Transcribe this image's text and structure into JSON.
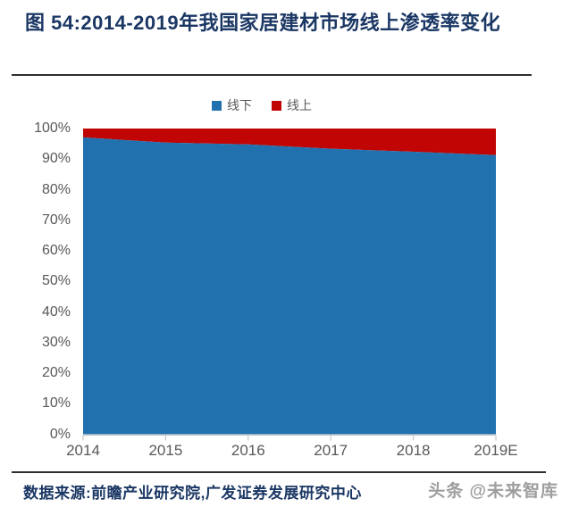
{
  "figure": {
    "title": "图 54:2014-2019年我国家居建材市场线上渗透率变化",
    "source": "数据来源:前瞻产业研究院,广发证券发展研究中心",
    "watermark": "头条 @未来智库"
  },
  "colors": {
    "offline": "#2071AE",
    "online": "#C00504",
    "title_text": "#1B3764",
    "axis_text": "#595959",
    "axis_line": "#C8C8C8"
  },
  "chart_data": {
    "type": "area",
    "stacked": true,
    "title": "2014-2019年我国家居建材市场线上渗透率变化",
    "categories": [
      "2014",
      "2015",
      "2016",
      "2017",
      "2018",
      "2019E"
    ],
    "series": [
      {
        "name": "线下",
        "color": "#2071AE",
        "values": [
          97.1,
          95.4,
          94.8,
          93.4,
          92.4,
          91.3
        ]
      },
      {
        "name": "线上",
        "color": "#C00504",
        "values": [
          2.9,
          4.6,
          5.2,
          6.6,
          7.6,
          8.7
        ]
      }
    ],
    "xlabel": "",
    "ylabel": "",
    "ylim": [
      0,
      100
    ],
    "y_ticks": [
      "100%",
      "90%",
      "80%",
      "70%",
      "60%",
      "50%",
      "40%",
      "30%",
      "20%",
      "10%",
      "0%"
    ],
    "grid": false,
    "legend_position": "top-center"
  }
}
